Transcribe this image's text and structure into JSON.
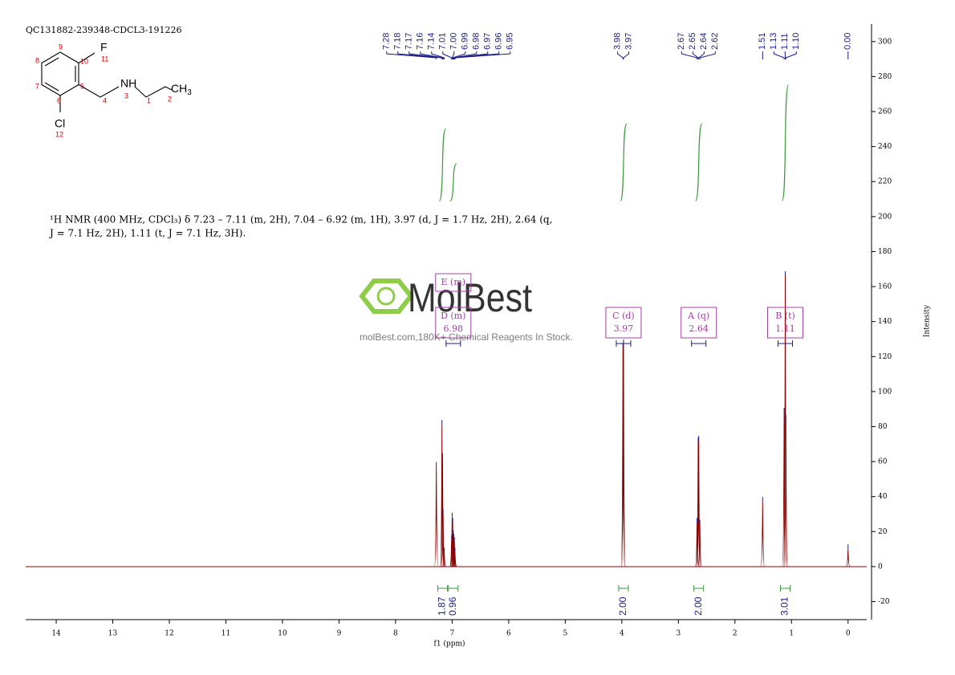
{
  "sample": "QC131882-239348-CDCL3-191226",
  "structure": {
    "atoms": [
      "9",
      "10",
      "8",
      "7",
      "6",
      "5",
      "4",
      "3",
      "1",
      "2",
      "11",
      "12"
    ],
    "f": "F",
    "nh": "NH",
    "ch": "CH",
    "ch_sub": "3",
    "cl": "Cl"
  },
  "description": [
    "¹H NMR (400 MHz, CDCl₃) δ 7.23 – 7.11 (m, 2H), 7.04 – 6.92 (m, 1H), 3.97 (d, J = 1.7 Hz, 2H), 2.64 (q,",
    "J = 7.1 Hz, 2H), 1.11 (t, J = 7.1 Hz, 3H)."
  ],
  "watermark": {
    "brand": "MolBest",
    "tagline": "molBest.com,180K+ Chemical Reagents In Stock."
  },
  "chart_data": {
    "type": "nmr",
    "x_label": "f1 (ppm)",
    "y_label": "Intensity",
    "xlim": [
      14.54,
      -0.33
    ],
    "ylim": [
      -30.3,
      310
    ],
    "xticks": [
      14,
      13,
      12,
      11,
      10,
      9,
      8,
      7,
      6,
      5,
      4,
      3,
      2,
      1,
      0
    ],
    "yticks": [
      -20,
      0,
      20,
      40,
      60,
      80,
      100,
      120,
      140,
      160,
      180,
      200,
      220,
      240,
      260,
      280,
      300
    ],
    "color": "#8b0000",
    "label_color": "#1c1c8c",
    "integral_color": "#3a9a3a",
    "box_color": "#a040a0",
    "peaks": {
      "x": [
        7.28,
        7.18,
        7.17,
        7.16,
        7.14,
        7.01,
        7.0,
        6.99,
        6.98,
        6.97,
        6.96,
        6.95,
        3.98,
        3.97,
        2.67,
        2.65,
        2.64,
        2.62,
        1.51,
        1.13,
        1.11,
        1.1,
        0.0
      ],
      "x_labels": [
        "7.28",
        "7.18",
        "7.17",
        "7.16",
        "7.14",
        "7.01",
        "7.00",
        "6.99",
        "6.98",
        "6.97",
        "6.96",
        "6.95",
        "3.98",
        "3.97",
        "2.67",
        "2.65",
        "2.64",
        "2.62",
        "1.51",
        "1.13",
        "1.11",
        "1.10",
        "0.00"
      ],
      "values": [
        57,
        81,
        62,
        30,
        8,
        15,
        28,
        25,
        18,
        16,
        14,
        8,
        125,
        127,
        25,
        71,
        72,
        24,
        37,
        88,
        166,
        84,
        10
      ]
    },
    "integrals": {
      "x": [
        7.17,
        6.98,
        3.97,
        2.64,
        1.11
      ],
      "values": [
        1.87,
        0.96,
        2.0,
        2.0,
        3.01
      ],
      "value_labels": [
        "1.87",
        "0.96",
        "2.00",
        "2.00",
        "3.01"
      ]
    },
    "multiplets": [
      {
        "label": "E (m)"
      },
      {
        "label": "D (m)",
        "shift": 6.98
      },
      {
        "label": "C (d)",
        "shift": 3.97
      },
      {
        "label": "A (q)",
        "shift": 2.64
      },
      {
        "label": "B (t)",
        "shift": 1.11
      }
    ]
  }
}
